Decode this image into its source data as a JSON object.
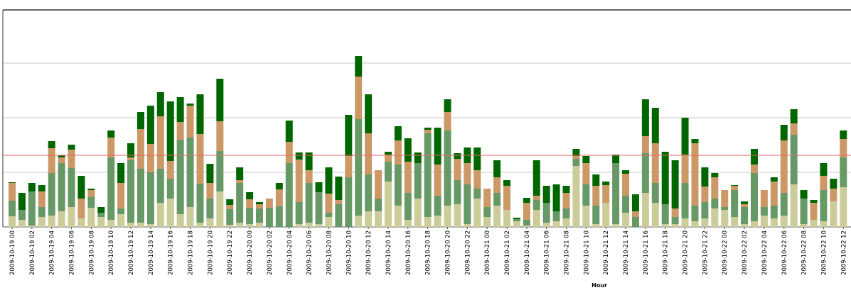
{
  "chart_data": {
    "type": "stacked_bar",
    "x_label": "Hour",
    "categories": [
      "2009-10-19 00",
      null,
      "2009-10-19 02",
      null,
      "2009-10-19 04",
      null,
      "2009-10-19 06",
      null,
      "2009-10-19 08",
      null,
      "2009-10-19 10",
      null,
      "2009-10-19 12",
      null,
      "2009-10-19 14",
      null,
      "2009-10-19 16",
      null,
      "2009-10-19 18",
      null,
      "2009-10-19 20",
      null,
      "2009-10-19 22",
      null,
      "2009-10-20 00",
      null,
      "2009-10-20 02",
      null,
      "2009-10-20 04",
      null,
      "2009-10-20 06",
      null,
      "2009-10-20 08",
      null,
      "2009-10-20 10",
      null,
      "2009-10-20 12",
      null,
      "2009-10-20 14",
      null,
      "2009-10-20 16",
      null,
      "2009-10-20 18",
      null,
      "2009-10-20 20",
      null,
      "2009-10-20 22",
      null,
      "2009-10-21 00",
      null,
      "2009-10-21 02",
      null,
      "2009-10-21 04",
      null,
      "2009-10-21 06",
      null,
      "2009-10-21 08",
      null,
      "2009-10-21 10",
      null,
      "2009-10-21 12",
      null,
      "2009-10-21 14",
      null,
      "2009-10-21 16",
      null,
      "2009-10-21 18",
      null,
      "2009-10-21 20",
      null,
      "2009-10-21 22",
      null,
      "2009-10-22 00",
      null,
      "2009-10-22 02",
      null,
      "2009-10-22 04",
      null,
      "2009-10-22 06",
      null,
      "2009-10-22 08",
      null,
      "2009-10-22 10",
      null,
      "2009-10-22 12"
    ],
    "series": [
      {
        "color": "#cccc99",
        "values": [
          15,
          10,
          2,
          14,
          16,
          22,
          28,
          12,
          27,
          14,
          10,
          18,
          6,
          6,
          4,
          34,
          40,
          18,
          28,
          6,
          12,
          50,
          3,
          6,
          4,
          6,
          0,
          0,
          0,
          4,
          6,
          4,
          14,
          0,
          0,
          16,
          22,
          22,
          64,
          30,
          10,
          40,
          14,
          16,
          30,
          32,
          4,
          40,
          14,
          30,
          24,
          8,
          2,
          24,
          6,
          8,
          12,
          86,
          30,
          4,
          34,
          4,
          20,
          0,
          48,
          34,
          4,
          4,
          12,
          8,
          12,
          26,
          24,
          14,
          4,
          8,
          16,
          12,
          16,
          60,
          4,
          10,
          8,
          36,
          56
        ]
      },
      {
        "color": "#669966",
        "values": [
          22,
          14,
          48,
          14,
          60,
          68,
          55,
          0,
          15,
          6,
          88,
          8,
          88,
          76,
          73,
          48,
          28,
          105,
          98,
          55,
          28,
          57,
          22,
          56,
          23,
          20,
          27,
          29,
          90,
          31,
          56,
          45,
          6,
          32,
          70,
          136,
          52,
          18,
          28,
          58,
          38,
          50,
          118,
          28,
          106,
          34,
          56,
          14,
          14,
          18,
          0,
          3,
          8,
          14,
          28,
          14,
          14,
          10,
          30,
          26,
          0,
          86,
          24,
          14,
          56,
          28,
          28,
          10,
          50,
          22,
          23,
          14,
          4,
          38,
          24,
          68,
          12,
          18,
          32,
          70,
          36,
          0,
          44,
          0,
          42
        ]
      },
      {
        "color": "#cc9966",
        "values": [
          25,
          0,
          0,
          22,
          35,
          8,
          26,
          28,
          10,
          0,
          28,
          36,
          4,
          56,
          40,
          74,
          25,
          25,
          45,
          70,
          22,
          42,
          6,
          4,
          12,
          6,
          13,
          24,
          30,
          60,
          18,
          0,
          27,
          6,
          30,
          60,
          58,
          40,
          10,
          34,
          44,
          0,
          5,
          44,
          26,
          30,
          30,
          26,
          26,
          22,
          34,
          0,
          24,
          6,
          0,
          0,
          22,
          4,
          30,
          28,
          25,
          0,
          31,
          8,
          24,
          56,
          0,
          12,
          40,
          88,
          22,
          30,
          24,
          6,
          4,
          12,
          24,
          34,
          74,
          16,
          0,
          24,
          20,
          18,
          26
        ]
      },
      {
        "color": "#006600",
        "values": [
          1,
          24,
          12,
          9,
          10,
          3,
          7,
          32,
          2,
          8,
          10,
          28,
          20,
          24,
          54,
          34,
          84,
          35,
          3,
          56,
          27,
          60,
          8,
          18,
          10,
          3,
          0,
          9,
          30,
          10,
          25,
          14,
          37,
          33,
          58,
          29,
          55,
          0,
          4,
          20,
          33,
          15,
          3,
          52,
          18,
          8,
          22,
          32,
          0,
          24,
          8,
          2,
          7,
          50,
          24,
          38,
          10,
          10,
          10,
          16,
          5,
          12,
          5,
          24,
          52,
          50,
          74,
          68,
          52,
          6,
          27,
          6,
          0,
          1,
          4,
          22,
          0,
          6,
          22,
          20,
          12,
          4,
          18,
          14,
          12
        ]
      }
    ],
    "ylim": [
      0,
      306
    ],
    "yticks": [
      0,
      77,
      154,
      231
    ],
    "grid": true,
    "reference_line": 101,
    "reference_color": "#e06666"
  }
}
